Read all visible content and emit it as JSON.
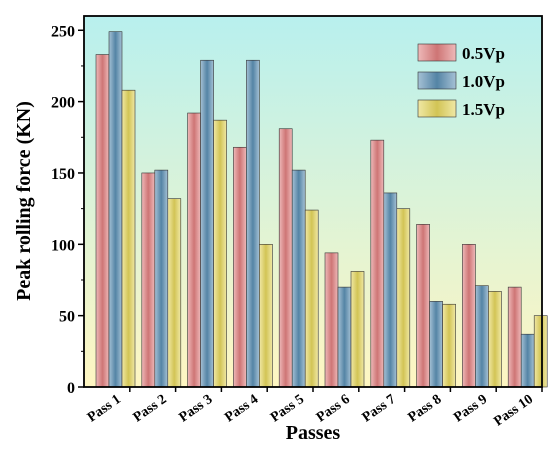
{
  "chart_data": {
    "type": "bar",
    "title": "",
    "xlabel": "Passes",
    "ylabel": "Peak rolling force (KN)",
    "ylim": [
      0,
      260
    ],
    "yticks": [
      0,
      50,
      100,
      150,
      200,
      250
    ],
    "categories": [
      "Pass 1",
      "Pass 2",
      "Pass 3",
      "Pass 4",
      "Pass 5",
      "Pass 6",
      "Pass 7",
      "Pass 8",
      "Pass 9",
      "Pass 10"
    ],
    "series": [
      {
        "name": "0.5Vp",
        "color": "#e07f7f",
        "values": [
          233,
          150,
          192,
          168,
          181,
          94,
          173,
          114,
          100,
          70
        ]
      },
      {
        "name": "1.0Vp",
        "color": "#5b8fb3",
        "values": [
          249,
          152,
          229,
          229,
          152,
          70,
          136,
          60,
          71,
          37
        ]
      },
      {
        "name": "1.5Vp",
        "color": "#e4d55c",
        "values": [
          208,
          132,
          187,
          100,
          124,
          81,
          125,
          58,
          67,
          50
        ]
      }
    ],
    "background_gradient": [
      "#b8f0ee",
      "#fff6c2"
    ],
    "legend_position": "top-right",
    "grid": false
  }
}
